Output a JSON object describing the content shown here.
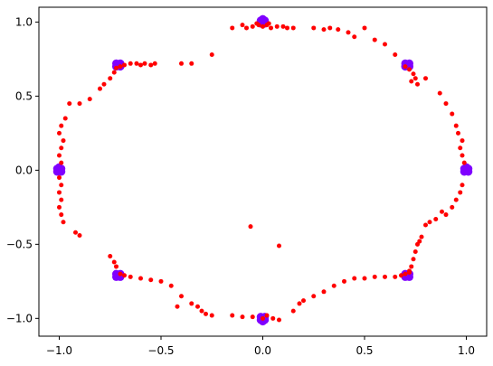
{
  "chart_data": {
    "type": "scatter",
    "title": "",
    "xlabel": "",
    "ylabel": "",
    "xlim": [
      -1.1,
      1.1
    ],
    "ylim": [
      -1.12,
      1.1
    ],
    "grid": false,
    "legend": "none",
    "x_ticks": [
      {
        "value": -1.0,
        "label": "−1.0"
      },
      {
        "value": -0.5,
        "label": "−0.5"
      },
      {
        "value": 0.0,
        "label": "0.0"
      },
      {
        "value": 0.5,
        "label": "0.5"
      },
      {
        "value": 1.0,
        "label": "1.0"
      }
    ],
    "y_ticks": [
      {
        "value": -1.0,
        "label": "−1.0"
      },
      {
        "value": -0.5,
        "label": "−0.5"
      },
      {
        "value": 0.0,
        "label": "0.0"
      },
      {
        "value": 0.5,
        "label": "0.5"
      },
      {
        "value": 1.0,
        "label": "1.0"
      }
    ],
    "series": [
      {
        "color": "#7f00ff",
        "marker_size": 4.5,
        "points": [
          [
            -1.0,
            0.0
          ],
          [
            -1.01,
            0.01
          ],
          [
            -0.99,
            -0.01
          ],
          [
            -1.0,
            0.02
          ],
          [
            -0.99,
            0.01
          ],
          [
            -1.01,
            -0.01
          ],
          [
            1.0,
            0.0
          ],
          [
            1.01,
            0.01
          ],
          [
            0.99,
            -0.01
          ],
          [
            1.0,
            0.02
          ],
          [
            1.01,
            -0.01
          ],
          [
            0.99,
            0.01
          ],
          [
            0.0,
            1.0
          ],
          [
            0.01,
            1.01
          ],
          [
            -0.01,
            0.99
          ],
          [
            0.0,
            1.02
          ],
          [
            0.01,
            0.99
          ],
          [
            -0.01,
            1.01
          ],
          [
            0.0,
            -1.0
          ],
          [
            0.01,
            -1.01
          ],
          [
            -0.01,
            -0.99
          ],
          [
            0.0,
            -1.02
          ],
          [
            0.01,
            -0.99
          ],
          [
            -0.01,
            -1.01
          ],
          [
            -0.71,
            0.71
          ],
          [
            -0.7,
            0.7
          ],
          [
            -0.72,
            0.7
          ],
          [
            -0.7,
            0.72
          ],
          [
            -0.72,
            0.72
          ],
          [
            0.71,
            0.71
          ],
          [
            0.72,
            0.7
          ],
          [
            0.7,
            0.7
          ],
          [
            0.72,
            0.72
          ],
          [
            0.7,
            0.72
          ],
          [
            -0.71,
            -0.71
          ],
          [
            -0.7,
            -0.72
          ],
          [
            -0.72,
            -0.7
          ],
          [
            -0.7,
            -0.7
          ],
          [
            -0.72,
            -0.72
          ],
          [
            0.71,
            -0.71
          ],
          [
            0.72,
            -0.72
          ],
          [
            0.7,
            -0.7
          ],
          [
            0.72,
            -0.7
          ],
          [
            0.7,
            -0.72
          ]
        ]
      },
      {
        "color": "#ff0000",
        "marker_size": 2.5,
        "points": [
          [
            -0.15,
            0.96
          ],
          [
            -0.1,
            0.98
          ],
          [
            -0.08,
            0.96
          ],
          [
            -0.05,
            0.97
          ],
          [
            -0.02,
            0.98
          ],
          [
            0.0,
            0.97
          ],
          [
            0.02,
            0.98
          ],
          [
            0.04,
            0.96
          ],
          [
            0.07,
            0.97
          ],
          [
            0.1,
            0.97
          ],
          [
            0.12,
            0.96
          ],
          [
            0.15,
            0.96
          ],
          [
            0.25,
            0.96
          ],
          [
            0.3,
            0.95
          ],
          [
            0.33,
            0.96
          ],
          [
            0.37,
            0.95
          ],
          [
            0.42,
            0.93
          ],
          [
            0.45,
            0.9
          ],
          [
            0.5,
            0.96
          ],
          [
            0.55,
            0.88
          ],
          [
            0.6,
            0.85
          ],
          [
            0.65,
            0.78
          ],
          [
            0.03,
            0.99
          ],
          [
            -0.03,
            0.99
          ],
          [
            -0.7,
            0.7
          ],
          [
            -0.68,
            0.71
          ],
          [
            -0.72,
            0.69
          ],
          [
            -0.65,
            0.72
          ],
          [
            -0.62,
            0.72
          ],
          [
            -0.6,
            0.71
          ],
          [
            -0.58,
            0.72
          ],
          [
            -0.55,
            0.71
          ],
          [
            -0.53,
            0.72
          ],
          [
            -0.4,
            0.72
          ],
          [
            -0.35,
            0.72
          ],
          [
            -0.25,
            0.78
          ],
          [
            -0.73,
            0.66
          ],
          [
            -0.75,
            0.62
          ],
          [
            -0.78,
            0.58
          ],
          [
            -0.8,
            0.55
          ],
          [
            -0.85,
            0.48
          ],
          [
            -0.9,
            0.45
          ],
          [
            -0.95,
            0.45
          ],
          [
            -0.97,
            0.35
          ],
          [
            0.7,
            0.7
          ],
          [
            0.72,
            0.68
          ],
          [
            0.74,
            0.65
          ],
          [
            0.73,
            0.6
          ],
          [
            0.75,
            0.62
          ],
          [
            0.76,
            0.58
          ],
          [
            0.8,
            0.62
          ],
          [
            0.87,
            0.52
          ],
          [
            0.9,
            0.45
          ],
          [
            0.93,
            0.38
          ],
          [
            0.95,
            0.3
          ],
          [
            0.96,
            0.25
          ],
          [
            0.98,
            0.2
          ],
          [
            0.97,
            0.15
          ],
          [
            0.98,
            0.1
          ],
          [
            0.99,
            0.05
          ],
          [
            -0.99,
            0.3
          ],
          [
            -1.0,
            0.25
          ],
          [
            -0.98,
            0.2
          ],
          [
            -0.99,
            0.15
          ],
          [
            -1.0,
            0.1
          ],
          [
            -0.99,
            0.05
          ],
          [
            -1.0,
            -0.05
          ],
          [
            -0.99,
            -0.1
          ],
          [
            -1.0,
            -0.15
          ],
          [
            -0.99,
            -0.2
          ],
          [
            -1.0,
            -0.25
          ],
          [
            -0.99,
            -0.3
          ],
          [
            -0.98,
            -0.35
          ],
          [
            -0.92,
            -0.42
          ],
          [
            -0.9,
            -0.44
          ],
          [
            0.98,
            -0.1
          ],
          [
            0.97,
            -0.15
          ],
          [
            0.95,
            -0.2
          ],
          [
            0.93,
            -0.25
          ],
          [
            0.9,
            -0.3
          ],
          [
            0.88,
            -0.28
          ],
          [
            0.85,
            -0.33
          ],
          [
            0.82,
            -0.35
          ],
          [
            0.8,
            -0.37
          ],
          [
            0.78,
            -0.45
          ],
          [
            0.76,
            -0.5
          ],
          [
            0.75,
            -0.55
          ],
          [
            0.77,
            -0.48
          ],
          [
            0.74,
            -0.6
          ],
          [
            0.73,
            -0.65
          ],
          [
            0.72,
            -0.68
          ],
          [
            -0.75,
            -0.58
          ],
          [
            -0.73,
            -0.62
          ],
          [
            -0.72,
            -0.65
          ],
          [
            -0.7,
            -0.7
          ],
          [
            -0.68,
            -0.71
          ],
          [
            -0.65,
            -0.72
          ],
          [
            -0.6,
            -0.73
          ],
          [
            -0.55,
            -0.74
          ],
          [
            -0.5,
            -0.75
          ],
          [
            -0.45,
            -0.78
          ],
          [
            -0.4,
            -0.85
          ],
          [
            -0.35,
            -0.9
          ],
          [
            -0.32,
            -0.92
          ],
          [
            -0.3,
            -0.95
          ],
          [
            -0.28,
            -0.97
          ],
          [
            -0.25,
            -0.98
          ],
          [
            -0.42,
            -0.92
          ],
          [
            -0.15,
            -0.98
          ],
          [
            -0.1,
            -0.99
          ],
          [
            -0.05,
            -0.99
          ],
          [
            0.0,
            -1.0
          ],
          [
            0.02,
            -0.98
          ],
          [
            0.05,
            -1.0
          ],
          [
            0.08,
            -1.01
          ],
          [
            0.15,
            -0.95
          ],
          [
            0.18,
            -0.9
          ],
          [
            0.2,
            -0.88
          ],
          [
            0.25,
            -0.85
          ],
          [
            0.3,
            -0.82
          ],
          [
            0.35,
            -0.78
          ],
          [
            0.4,
            -0.75
          ],
          [
            0.45,
            -0.73
          ],
          [
            0.5,
            -0.73
          ],
          [
            0.55,
            -0.72
          ],
          [
            0.6,
            -0.72
          ],
          [
            0.65,
            -0.72
          ],
          [
            0.68,
            -0.71
          ],
          [
            0.7,
            -0.7
          ],
          [
            0.72,
            -0.69
          ],
          [
            -0.06,
            -0.38
          ],
          [
            0.08,
            -0.51
          ]
        ]
      }
    ]
  }
}
